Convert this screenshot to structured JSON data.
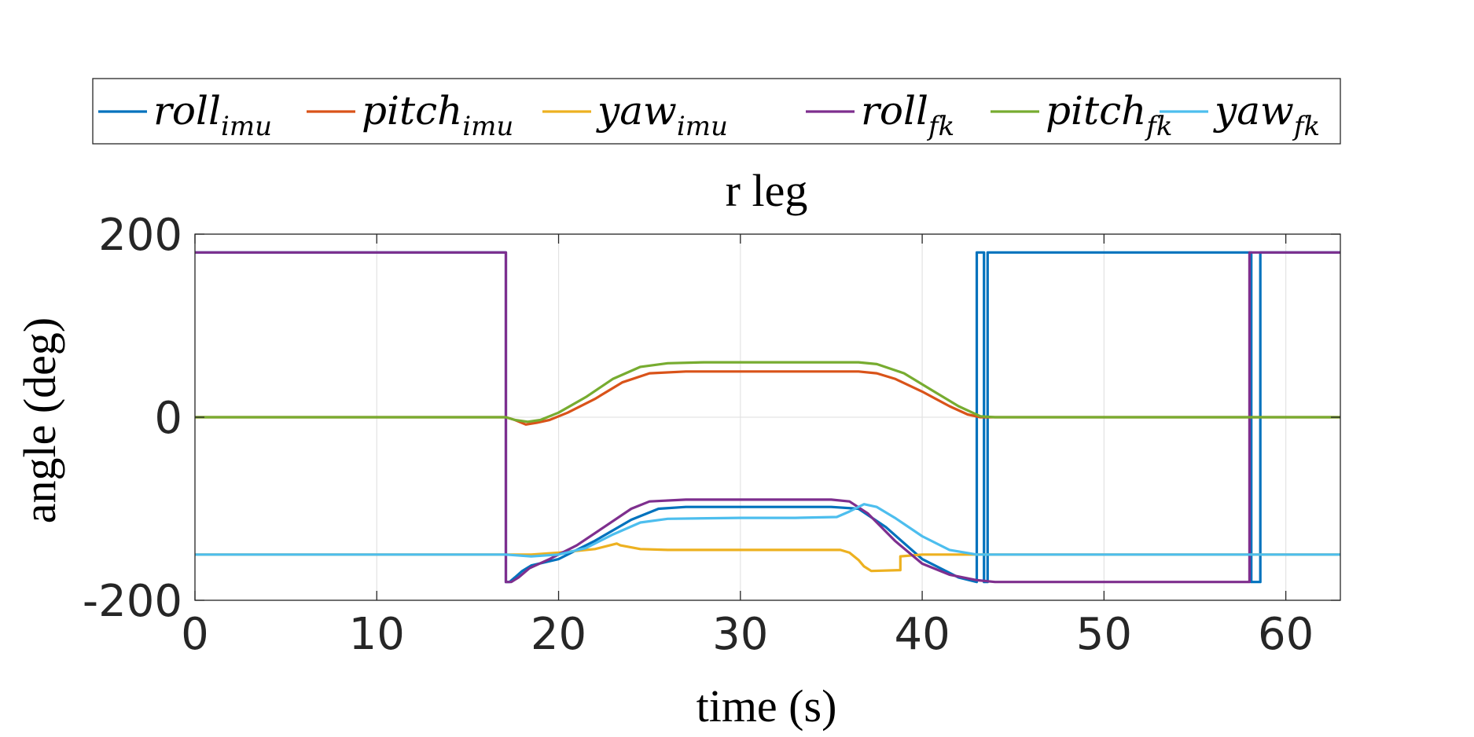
{
  "chart_data": {
    "type": "line",
    "title": "r leg",
    "xlabel": "time (s)",
    "ylabel": "angle (deg)",
    "xlim": [
      0,
      63
    ],
    "ylim": [
      -200,
      200
    ],
    "xticks": [
      0,
      10,
      20,
      30,
      40,
      50,
      60
    ],
    "yticks": [
      -200,
      0,
      200
    ],
    "xtick_labels": [
      "0",
      "10",
      "20",
      "30",
      "40",
      "50",
      "60"
    ],
    "ytick_labels": [
      "-200",
      "0",
      "200"
    ],
    "grid": true,
    "legend_position": "top",
    "series": [
      {
        "name": "roll",
        "subscript": "imu",
        "color": "#0072BD",
        "x": [
          0,
          17.1,
          17.1,
          17.3,
          17.6,
          18.0,
          18.5,
          20,
          22,
          24,
          25.5,
          27,
          30,
          33,
          35,
          36.5,
          38,
          40,
          42,
          43.0,
          43.0,
          43.4,
          43.4,
          43.6,
          43.6,
          58.1,
          58.1,
          58.6,
          58.6,
          63
        ],
        "y": [
          180,
          180,
          -180,
          -180,
          -175,
          -168,
          -162,
          -155,
          -135,
          -112,
          -100,
          -98,
          -98,
          -98,
          -98,
          -100,
          -120,
          -155,
          -175,
          -180,
          180,
          180,
          -180,
          -180,
          180,
          180,
          -180,
          -180,
          180,
          180
        ]
      },
      {
        "name": "pitch",
        "subscript": "imu",
        "color": "#D95319",
        "x": [
          0,
          17.1,
          17.6,
          18.2,
          18.8,
          19.5,
          20.5,
          22,
          23.5,
          25,
          27,
          30,
          33,
          35,
          36.5,
          37.5,
          38.5,
          40,
          41.5,
          42.5,
          43.2,
          44,
          50,
          63
        ],
        "y": [
          0,
          0,
          -3,
          -8,
          -6,
          -3,
          5,
          20,
          38,
          48,
          50,
          50,
          50,
          50,
          50,
          48,
          42,
          28,
          12,
          3,
          0,
          0,
          0,
          0
        ]
      },
      {
        "name": "yaw",
        "subscript": "imu",
        "color": "#EDB120",
        "x": [
          0,
          17.1,
          17.5,
          18.5,
          20,
          22,
          23.2,
          23.4,
          24.5,
          26,
          30,
          34,
          35.5,
          36,
          36.5,
          36.8,
          37.2,
          38.8,
          38.8,
          40,
          42,
          44,
          63
        ],
        "y": [
          -150,
          -150,
          -150,
          -150,
          -148,
          -144,
          -138,
          -140,
          -144,
          -145,
          -145,
          -145,
          -145,
          -148,
          -156,
          -163,
          -168,
          -167,
          -152,
          -150,
          -150,
          -150,
          -150
        ]
      },
      {
        "name": "roll",
        "subscript": "fk",
        "color": "#7E2F8E",
        "x": [
          0,
          17.1,
          17.1,
          17.4,
          17.8,
          18.4,
          19.5,
          21,
          22.5,
          24,
          25,
          27,
          30,
          33,
          35,
          36,
          37,
          38.5,
          40,
          41.5,
          43,
          44,
          58.0,
          58.0,
          58.7,
          58.7,
          63
        ],
        "y": [
          180,
          180,
          -180,
          -180,
          -175,
          -165,
          -155,
          -140,
          -120,
          -100,
          -92,
          -90,
          -90,
          -90,
          -90,
          -92,
          -105,
          -135,
          -160,
          -172,
          -178,
          -180,
          -180,
          180,
          180,
          180,
          180
        ]
      },
      {
        "name": "pitch",
        "subscript": "fk",
        "color": "#77AC30",
        "x": [
          0,
          17.1,
          17.6,
          18.3,
          19,
          20,
          21.5,
          23,
          24.5,
          26,
          28,
          31,
          34,
          36.5,
          37.5,
          39,
          40.5,
          42,
          43.2,
          44,
          50,
          63
        ],
        "y": [
          0,
          0,
          -3,
          -5,
          -3,
          5,
          22,
          42,
          55,
          59,
          60,
          60,
          60,
          60,
          58,
          48,
          30,
          12,
          1,
          0,
          0,
          0
        ]
      },
      {
        "name": "yaw",
        "subscript": "fk",
        "color": "#4DBEEE",
        "x": [
          0,
          17.1,
          18.5,
          20,
          21.5,
          23,
          24.5,
          26,
          30,
          33,
          35.3,
          36,
          36.8,
          37.5,
          38.5,
          40,
          41.5,
          43,
          44,
          63
        ],
        "y": [
          -150,
          -150,
          -152,
          -150,
          -143,
          -128,
          -115,
          -111,
          -110,
          -110,
          -109,
          -103,
          -95,
          -98,
          -110,
          -130,
          -145,
          -150,
          -150,
          -150
        ]
      }
    ]
  }
}
